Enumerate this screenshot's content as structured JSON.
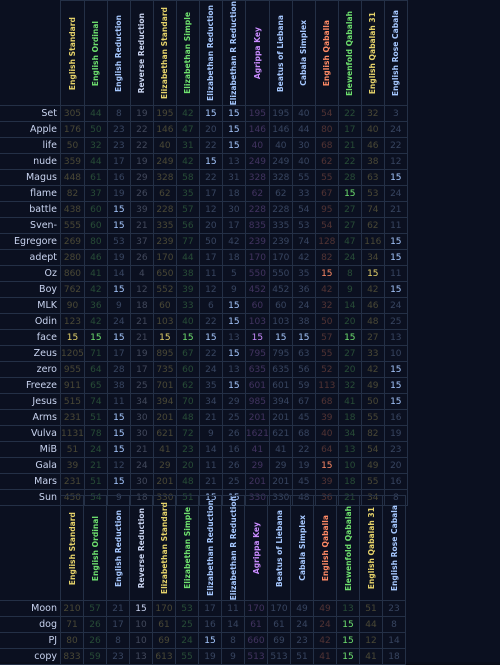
{
  "columns": [
    {
      "name": "English Standard",
      "color": "#e6d36a"
    },
    {
      "name": "English Ordinal",
      "color": "#6ee06e"
    },
    {
      "name": "English Reduction",
      "color": "#a6c8ff"
    },
    {
      "name": "Reverse Reduction",
      "color": "#c9d4f0"
    },
    {
      "name": "Elizabethan Standard",
      "color": "#e6d36a"
    },
    {
      "name": "Elizabethan Simple",
      "color": "#6ee06e"
    },
    {
      "name": "Elizabethan Reduction",
      "color": "#a6c8ff"
    },
    {
      "name": "Elizabethan R Reduction",
      "color": "#a6c8ff"
    },
    {
      "name": "Agrippa Key",
      "color": "#c98cff"
    },
    {
      "name": "Beatus of Liebana",
      "color": "#a6c8ff"
    },
    {
      "name": "Cabala Simplex",
      "color": "#a6c8ff"
    },
    {
      "name": "English Qaballa",
      "color": "#ff8a65"
    },
    {
      "name": "Elewenfold Qabalah",
      "color": "#6ee06e"
    },
    {
      "name": "English Qabalah 31",
      "color": "#e6d36a"
    },
    {
      "name": "English Rose Cabala",
      "color": "#a6c8ff"
    }
  ],
  "rows_top": [
    {
      "word": "Set",
      "values": [
        "305",
        "44",
        "8",
        "19",
        "195",
        "42",
        "15",
        "15",
        "195",
        "195",
        "40",
        "54",
        "22",
        "32",
        "3"
      ]
    },
    {
      "word": "Apple",
      "values": [
        "176",
        "50",
        "23",
        "22",
        "146",
        "47",
        "20",
        "15",
        "146",
        "146",
        "44",
        "80",
        "17",
        "40",
        "24"
      ]
    },
    {
      "word": "life",
      "values": [
        "50",
        "32",
        "23",
        "22",
        "40",
        "31",
        "22",
        "15",
        "40",
        "40",
        "30",
        "68",
        "21",
        "46",
        "22"
      ]
    },
    {
      "word": "nude",
      "values": [
        "359",
        "44",
        "17",
        "19",
        "249",
        "42",
        "15",
        "13",
        "249",
        "249",
        "40",
        "62",
        "22",
        "38",
        "12"
      ]
    },
    {
      "word": "Magus",
      "values": [
        "448",
        "61",
        "16",
        "29",
        "328",
        "58",
        "22",
        "31",
        "328",
        "328",
        "55",
        "55",
        "28",
        "63",
        "15"
      ]
    },
    {
      "word": "flame",
      "values": [
        "82",
        "37",
        "19",
        "26",
        "62",
        "35",
        "17",
        "18",
        "62",
        "62",
        "33",
        "67",
        "15",
        "53",
        "24"
      ]
    },
    {
      "word": "battle",
      "values": [
        "438",
        "60",
        "15",
        "39",
        "228",
        "57",
        "12",
        "30",
        "228",
        "228",
        "54",
        "95",
        "27",
        "74",
        "21"
      ]
    },
    {
      "word": "Sven-",
      "values": [
        "555",
        "60",
        "15",
        "21",
        "335",
        "56",
        "20",
        "17",
        "835",
        "335",
        "53",
        "54",
        "27",
        "62",
        "11"
      ]
    },
    {
      "word": "Egregore",
      "values": [
        "269",
        "80",
        "53",
        "37",
        "239",
        "77",
        "50",
        "42",
        "239",
        "239",
        "74",
        "128",
        "47",
        "116",
        "15"
      ]
    },
    {
      "word": "adept",
      "values": [
        "280",
        "46",
        "19",
        "26",
        "170",
        "44",
        "17",
        "18",
        "170",
        "170",
        "42",
        "82",
        "24",
        "34",
        "15"
      ]
    },
    {
      "word": "Oz",
      "values": [
        "860",
        "41",
        "14",
        "4",
        "650",
        "38",
        "11",
        "5",
        "550",
        "550",
        "35",
        "15",
        "8",
        "15",
        "11"
      ]
    },
    {
      "word": "Boy",
      "values": [
        "762",
        "42",
        "15",
        "12",
        "552",
        "39",
        "12",
        "9",
        "452",
        "452",
        "36",
        "42",
        "9",
        "42",
        "15"
      ]
    },
    {
      "word": "MLK",
      "values": [
        "90",
        "36",
        "9",
        "18",
        "60",
        "33",
        "6",
        "15",
        "60",
        "60",
        "24",
        "32",
        "14",
        "46",
        "24"
      ]
    },
    {
      "word": "Odin",
      "values": [
        "123",
        "42",
        "24",
        "21",
        "103",
        "40",
        "22",
        "15",
        "103",
        "103",
        "38",
        "50",
        "20",
        "48",
        "25"
      ]
    },
    {
      "word": "face",
      "values": [
        "15",
        "15",
        "15",
        "21",
        "15",
        "15",
        "15",
        "13",
        "15",
        "15",
        "15",
        "57",
        "15",
        "27",
        "13"
      ]
    },
    {
      "word": "Zeus",
      "values": [
        "1205",
        "71",
        "17",
        "19",
        "895",
        "67",
        "22",
        "15",
        "795",
        "795",
        "63",
        "55",
        "27",
        "33",
        "10"
      ]
    },
    {
      "word": "zero",
      "values": [
        "955",
        "64",
        "28",
        "17",
        "735",
        "60",
        "24",
        "13",
        "635",
        "635",
        "56",
        "52",
        "20",
        "42",
        "15"
      ]
    },
    {
      "word": "Freeze",
      "values": [
        "911",
        "65",
        "38",
        "25",
        "701",
        "62",
        "35",
        "15",
        "601",
        "601",
        "59",
        "113",
        "32",
        "49",
        "15"
      ]
    },
    {
      "word": "Jesus",
      "values": [
        "515",
        "74",
        "11",
        "34",
        "394",
        "70",
        "34",
        "29",
        "985",
        "394",
        "67",
        "68",
        "41",
        "50",
        "15"
      ]
    },
    {
      "word": "Arms",
      "values": [
        "231",
        "51",
        "15",
        "30",
        "201",
        "48",
        "21",
        "25",
        "201",
        "201",
        "45",
        "39",
        "18",
        "55",
        "16"
      ]
    },
    {
      "word": "Vulva",
      "values": [
        "1131",
        "78",
        "15",
        "30",
        "621",
        "72",
        "9",
        "26",
        "1621",
        "621",
        "68",
        "40",
        "34",
        "82",
        "19"
      ]
    },
    {
      "word": "MiB",
      "values": [
        "51",
        "24",
        "15",
        "21",
        "41",
        "23",
        "14",
        "16",
        "41",
        "41",
        "22",
        "64",
        "13",
        "54",
        "23"
      ]
    },
    {
      "word": "Gala",
      "values": [
        "39",
        "21",
        "12",
        "24",
        "29",
        "20",
        "11",
        "26",
        "29",
        "29",
        "19",
        "15",
        "10",
        "49",
        "20"
      ]
    },
    {
      "word": "Mars",
      "values": [
        "231",
        "51",
        "15",
        "30",
        "201",
        "48",
        "21",
        "25",
        "201",
        "201",
        "45",
        "39",
        "18",
        "55",
        "16"
      ]
    },
    {
      "word": "Sun",
      "values": [
        "450",
        "54",
        "9",
        "18",
        "330",
        "51",
        "15",
        "15",
        "330",
        "330",
        "48",
        "36",
        "21",
        "34",
        "8"
      ]
    }
  ],
  "rows_bottom": [
    {
      "word": "Moon",
      "values": [
        "210",
        "57",
        "21",
        "15",
        "170",
        "53",
        "17",
        "11",
        "170",
        "170",
        "49",
        "49",
        "13",
        "51",
        "23"
      ]
    },
    {
      "word": "dog",
      "values": [
        "71",
        "26",
        "17",
        "10",
        "61",
        "25",
        "16",
        "14",
        "61",
        "61",
        "24",
        "24",
        "15",
        "44",
        "8"
      ]
    },
    {
      "word": "PJ",
      "values": [
        "80",
        "26",
        "8",
        "10",
        "69",
        "24",
        "15",
        "8",
        "660",
        "69",
        "23",
        "42",
        "15",
        "12",
        "14"
      ]
    },
    {
      "word": "copy",
      "values": [
        "833",
        "59",
        "23",
        "13",
        "613",
        "55",
        "19",
        "9",
        "513",
        "513",
        "51",
        "41",
        "15",
        "41",
        "18"
      ]
    }
  ],
  "highlight_value": "15",
  "colors": {
    "background": "#0b1020",
    "grid": "#243046",
    "label": "#c9d4f0"
  }
}
